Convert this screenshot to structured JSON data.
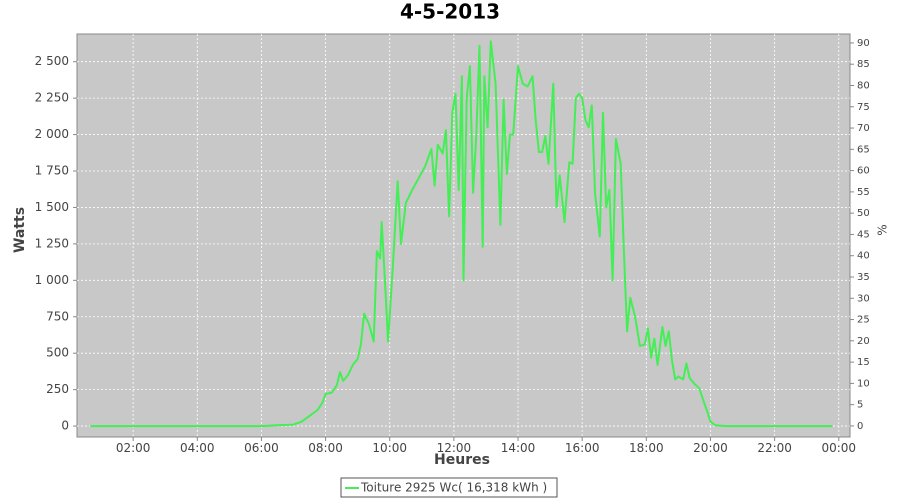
{
  "chart_data": {
    "type": "line",
    "title": "4-5-2013",
    "x_label": "Heures",
    "y_label": "Watts",
    "y2_label": "%",
    "x": [
      0.66,
      2,
      4,
      6,
      6.5,
      7.0,
      7.25,
      7.5,
      7.75,
      7.9,
      8.0,
      8.2,
      8.35,
      8.45,
      8.55,
      8.7,
      8.85,
      9.0,
      9.1,
      9.2,
      9.35,
      9.5,
      9.6,
      9.7,
      9.75,
      9.85,
      9.95,
      10.1,
      10.25,
      10.35,
      10.5,
      10.7,
      10.9,
      11.1,
      11.3,
      11.4,
      11.5,
      11.65,
      11.75,
      11.85,
      11.95,
      12.05,
      12.15,
      12.25,
      12.3,
      12.4,
      12.5,
      12.6,
      12.7,
      12.8,
      12.9,
      12.95,
      13.05,
      13.15,
      13.3,
      13.45,
      13.55,
      13.65,
      13.75,
      13.85,
      14.0,
      14.15,
      14.3,
      14.45,
      14.55,
      14.65,
      14.75,
      14.85,
      14.95,
      15.1,
      15.2,
      15.3,
      15.45,
      15.6,
      15.7,
      15.8,
      15.9,
      16.0,
      16.1,
      16.2,
      16.3,
      16.4,
      16.55,
      16.65,
      16.75,
      16.85,
      16.95,
      17.05,
      17.2,
      17.3,
      17.4,
      17.5,
      17.65,
      17.8,
      17.95,
      18.05,
      18.15,
      18.25,
      18.35,
      18.5,
      18.6,
      18.7,
      18.8,
      18.9,
      19.0,
      19.15,
      19.25,
      19.35,
      19.5,
      19.65,
      19.8,
      19.9,
      20.0,
      20.15,
      20.5,
      22,
      23.8
    ],
    "series": [
      {
        "name": "Toiture 2925 Wc( 16,318 kWh )",
        "color": "#44ee55",
        "values": [
          0,
          0,
          0,
          0,
          5,
          10,
          30,
          70,
          110,
          160,
          220,
          230,
          280,
          370,
          310,
          350,
          420,
          460,
          560,
          770,
          700,
          580,
          1200,
          1150,
          1400,
          1000,
          580,
          1100,
          1680,
          1250,
          1530,
          1620,
          1700,
          1780,
          1900,
          1650,
          1930,
          1870,
          2030,
          1440,
          2150,
          2280,
          1620,
          2400,
          1000,
          2250,
          2470,
          1600,
          2000,
          2610,
          1230,
          2400,
          2050,
          2640,
          2350,
          1380,
          2240,
          1730,
          2000,
          2000,
          2470,
          2350,
          2330,
          2400,
          2100,
          1880,
          1880,
          1990,
          1800,
          2350,
          1500,
          1720,
          1400,
          1810,
          1800,
          2250,
          2280,
          2250,
          2100,
          2050,
          2200,
          1600,
          1300,
          2150,
          1500,
          1620,
          1000,
          1970,
          1800,
          1200,
          650,
          880,
          750,
          550,
          560,
          670,
          470,
          600,
          420,
          680,
          550,
          650,
          450,
          320,
          340,
          320,
          430,
          330,
          290,
          260,
          160,
          100,
          30,
          5,
          0,
          0,
          0
        ]
      }
    ],
    "xlim": [
      0.25,
      24.35
    ],
    "xticks": [
      {
        "value": 2,
        "label": "02:00"
      },
      {
        "value": 4,
        "label": "04:00"
      },
      {
        "value": 6,
        "label": "06:00"
      },
      {
        "value": 8,
        "label": "08:00"
      },
      {
        "value": 10,
        "label": "10:00"
      },
      {
        "value": 12,
        "label": "12:00"
      },
      {
        "value": 14,
        "label": "14:00"
      },
      {
        "value": 16,
        "label": "16:00"
      },
      {
        "value": 18,
        "label": "18:00"
      },
      {
        "value": 20,
        "label": "20:00"
      },
      {
        "value": 22,
        "label": "22:00"
      },
      {
        "value": 24,
        "label": "00:00"
      }
    ],
    "ylim": [
      -75,
      2690
    ],
    "yticks": [
      0,
      250,
      500,
      750,
      {
        "value": 1000,
        "label": "1 000"
      },
      {
        "value": 1250,
        "label": "1 250"
      },
      {
        "value": 1500,
        "label": "1 500"
      },
      {
        "value": 1750,
        "label": "1 750"
      },
      {
        "value": 2000,
        "label": "2 000"
      },
      {
        "value": 2250,
        "label": "2 250"
      },
      {
        "value": 2500,
        "label": "2 500"
      }
    ],
    "y2lim": [
      -2.6,
      92.1
    ],
    "y2ticks": [
      0,
      5,
      10,
      15,
      20,
      25,
      30,
      35,
      40,
      45,
      50,
      55,
      60,
      65,
      70,
      75,
      80,
      85,
      90
    ],
    "grid": true
  }
}
